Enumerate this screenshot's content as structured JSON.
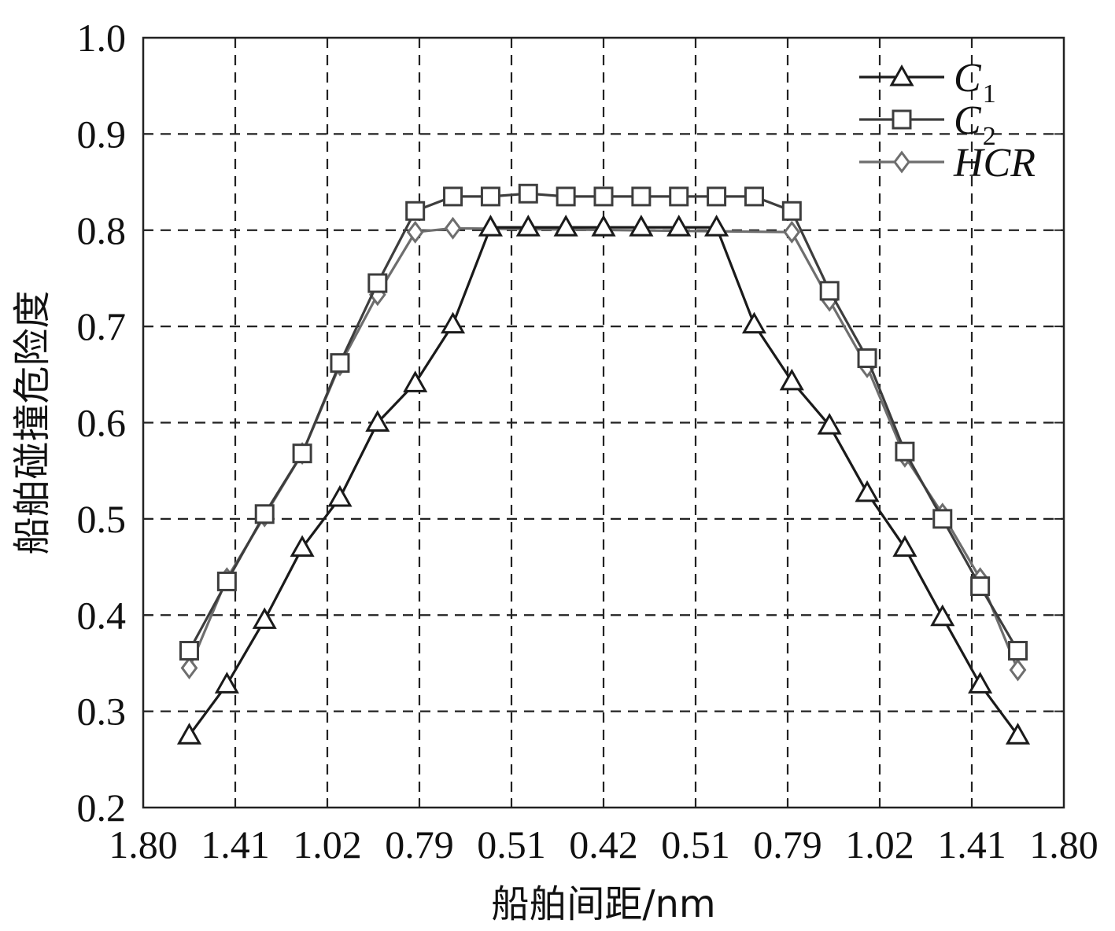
{
  "chart_data": {
    "type": "line",
    "xlabel": "船舶间距/nm",
    "ylabel": "船舶碰撞危险度",
    "ylim": [
      0.2,
      1.0
    ],
    "yticks": [
      "0.2",
      "0.3",
      "0.4",
      "0.5",
      "0.6",
      "0.7",
      "0.8",
      "0.9",
      "1.0"
    ],
    "xticks": [
      "1.80",
      "1.41",
      "1.02",
      "0.79",
      "0.51",
      "0.42",
      "0.51",
      "0.79",
      "1.02",
      "1.41",
      "1.80"
    ],
    "grid": true,
    "legend_position": "top-right",
    "series": [
      {
        "name": "C1",
        "legend_main": "C",
        "legend_sub": "1",
        "marker": "triangle",
        "color": "#1a1a1a",
        "x": [
          0.55,
          1.0,
          1.45,
          1.9,
          2.35,
          2.8,
          3.25,
          3.7,
          4.15,
          4.6,
          5.05,
          5.5,
          5.95,
          6.4,
          6.85,
          7.3,
          7.75,
          8.2,
          8.65,
          9.1,
          9.55,
          10.0,
          10.45
        ],
        "y": [
          0.275,
          0.328,
          0.395,
          0.47,
          0.522,
          0.6,
          0.641,
          0.702,
          0.803,
          0.803,
          0.803,
          0.803,
          0.803,
          0.803,
          0.803,
          0.702,
          0.643,
          0.597,
          0.527,
          0.47,
          0.398,
          0.328,
          0.275
        ]
      },
      {
        "name": "C2",
        "legend_main": "C",
        "legend_sub": "2",
        "marker": "square",
        "color": "#3d3d3d",
        "x": [
          0.55,
          1.0,
          1.45,
          1.9,
          2.35,
          2.8,
          3.25,
          3.7,
          4.15,
          4.6,
          5.05,
          5.5,
          5.95,
          6.4,
          6.85,
          7.3,
          7.75,
          8.2,
          8.65,
          9.1,
          9.55,
          10.0,
          10.45
        ],
        "y": [
          0.363,
          0.435,
          0.505,
          0.568,
          0.662,
          0.745,
          0.82,
          0.835,
          0.835,
          0.838,
          0.835,
          0.835,
          0.835,
          0.835,
          0.835,
          0.835,
          0.82,
          0.737,
          0.667,
          0.57,
          0.5,
          0.43,
          0.363
        ]
      },
      {
        "name": "HCR",
        "legend_main": "HCR",
        "legend_sub": "",
        "marker": "diamond",
        "color": "#6e6e6e",
        "x": [
          0.55,
          1.0,
          1.45,
          1.9,
          2.35,
          2.8,
          3.25,
          3.7,
          7.75,
          8.2,
          8.65,
          9.1,
          9.55,
          10.0,
          10.45
        ],
        "y": [
          0.345,
          0.438,
          0.503,
          0.568,
          0.66,
          0.733,
          0.798,
          0.802,
          0.798,
          0.727,
          0.658,
          0.565,
          0.505,
          0.438,
          0.343
        ]
      }
    ]
  }
}
